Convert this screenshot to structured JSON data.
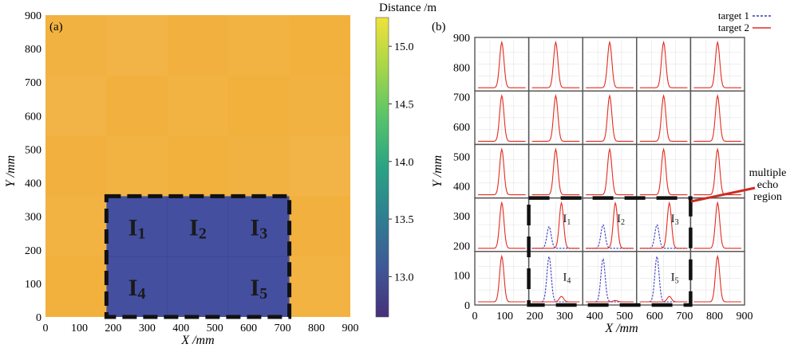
{
  "colors": {
    "background_distance": "#f2b13d",
    "target_region": "#444fa0",
    "target1_line": "#3a3ac0",
    "target2_line": "#e32b1f",
    "annotation_arrow": "#cc2b22",
    "colorbar_stops": [
      "#46307a",
      "#3f5897",
      "#2e7f91",
      "#2ba384",
      "#57c46a",
      "#a7d648",
      "#f0e23a"
    ]
  },
  "chart_data": [
    {
      "type": "heatmap",
      "panel_label": "(a)",
      "xlabel": "X /mm",
      "ylabel": "Y /mm",
      "xlim": [
        0,
        900
      ],
      "ylim": [
        0,
        900
      ],
      "xticks": [
        "0",
        "100",
        "200",
        "300",
        "400",
        "500",
        "600",
        "700",
        "800",
        "900"
      ],
      "yticks": [
        "0",
        "100",
        "200",
        "300",
        "400",
        "500",
        "600",
        "700",
        "800",
        "900"
      ],
      "background_value": 15.0,
      "target_region": {
        "x": [
          180,
          720
        ],
        "y": [
          0,
          360
        ],
        "value": 12.9
      },
      "region_labels": [
        {
          "main": "I",
          "sub": "1",
          "x": 270,
          "y": 270
        },
        {
          "main": "I",
          "sub": "2",
          "x": 450,
          "y": 270
        },
        {
          "main": "I",
          "sub": "3",
          "x": 630,
          "y": 270
        },
        {
          "main": "I",
          "sub": "4",
          "x": 270,
          "y": 90
        },
        {
          "main": "I",
          "sub": "5",
          "x": 630,
          "y": 90
        }
      ],
      "colorbar": {
        "title": "Distance /m",
        "range": [
          12.65,
          15.25
        ],
        "ticks": [
          "13.0",
          "13.5",
          "14.0",
          "14.5",
          "15.0"
        ]
      }
    },
    {
      "type": "line",
      "panel_label": "(b)",
      "xlabel": "X /mm",
      "ylabel": "Y /mm",
      "xlim": [
        0,
        900
      ],
      "ylim": [
        0,
        900
      ],
      "xticks": [
        "0",
        "100",
        "200",
        "300",
        "400",
        "500",
        "600",
        "700",
        "800",
        "900"
      ],
      "yticks": [
        "0",
        "100",
        "200",
        "300",
        "400",
        "500",
        "600",
        "700",
        "800",
        "900"
      ],
      "grid_cell_mm": 180,
      "legend": [
        "target 1",
        "target 2"
      ],
      "annotation": [
        "multiple",
        "echo",
        "region"
      ],
      "dashed_region": {
        "x": [
          180,
          720
        ],
        "y": [
          0,
          360
        ]
      },
      "region_labels": [
        {
          "main": "I",
          "sub": "1",
          "x": 270,
          "y": 270
        },
        {
          "main": "I",
          "sub": "2",
          "x": 450,
          "y": 270
        },
        {
          "main": "I",
          "sub": "3",
          "x": 630,
          "y": 270
        },
        {
          "main": "I",
          "sub": "4",
          "x": 270,
          "y": 90
        },
        {
          "main": "I",
          "sub": "5",
          "x": 630,
          "y": 90
        }
      ],
      "cells": [
        {
          "col": 0,
          "row": 0,
          "t2_peak": 1.0
        },
        {
          "col": 1,
          "row": 0,
          "t2_peak": 1.0
        },
        {
          "col": 2,
          "row": 0,
          "t2_peak": 1.0
        },
        {
          "col": 3,
          "row": 0,
          "t2_peak": 1.0
        },
        {
          "col": 4,
          "row": 0,
          "t2_peak": 1.0
        },
        {
          "col": 0,
          "row": 1,
          "t2_peak": 1.0
        },
        {
          "col": 1,
          "row": 1,
          "t2_peak": 1.0
        },
        {
          "col": 2,
          "row": 1,
          "t2_peak": 1.0
        },
        {
          "col": 3,
          "row": 1,
          "t2_peak": 1.0
        },
        {
          "col": 4,
          "row": 1,
          "t2_peak": 1.0
        },
        {
          "col": 0,
          "row": 2,
          "t2_peak": 1.0
        },
        {
          "col": 1,
          "row": 2,
          "t2_peak": 1.0
        },
        {
          "col": 2,
          "row": 2,
          "t2_peak": 1.0
        },
        {
          "col": 3,
          "row": 2,
          "t2_peak": 1.0
        },
        {
          "col": 4,
          "row": 2,
          "t2_peak": 1.0
        },
        {
          "col": 0,
          "row": 3,
          "t2_peak": 1.0
        },
        {
          "col": 1,
          "row": 3,
          "t1_peak": 0.48,
          "t2_peak": 1.0
        },
        {
          "col": 2,
          "row": 3,
          "t1_peak": 0.52,
          "t2_peak": 1.0
        },
        {
          "col": 3,
          "row": 3,
          "t1_peak": 0.52,
          "t2_peak": 1.0
        },
        {
          "col": 4,
          "row": 3,
          "t2_peak": 1.0
        },
        {
          "col": 0,
          "row": 4,
          "t2_peak": 1.0
        },
        {
          "col": 1,
          "row": 4,
          "t1_peak": 1.0,
          "t2_peak": 0.12
        },
        {
          "col": 2,
          "row": 4,
          "t1_peak": 0.95,
          "t2_peak": 0.03
        },
        {
          "col": 3,
          "row": 4,
          "t1_peak": 1.0,
          "t2_peak": 0.12
        },
        {
          "col": 4,
          "row": 4,
          "t2_peak": 1.0
        }
      ]
    }
  ]
}
